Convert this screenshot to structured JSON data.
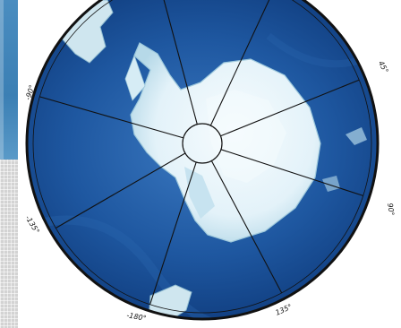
{
  "map": {
    "projection": "south-polar-stereographic",
    "colors": {
      "ocean_deep": "#0d3878",
      "ocean_mid": "#1e57a0",
      "ocean_light": "#3a78c0",
      "ice": "#eaf6fb",
      "ice_shadow": "#9ec9dc",
      "frame": "#111111",
      "graticule": "#111111",
      "land_highlight": "#d6ecf5"
    },
    "meridian_labels": [
      {
        "text": "-90°"
      },
      {
        "text": "45°"
      },
      {
        "text": "90°"
      },
      {
        "text": "-135°"
      },
      {
        "text": "-180°"
      },
      {
        "text": "135°"
      }
    ]
  }
}
